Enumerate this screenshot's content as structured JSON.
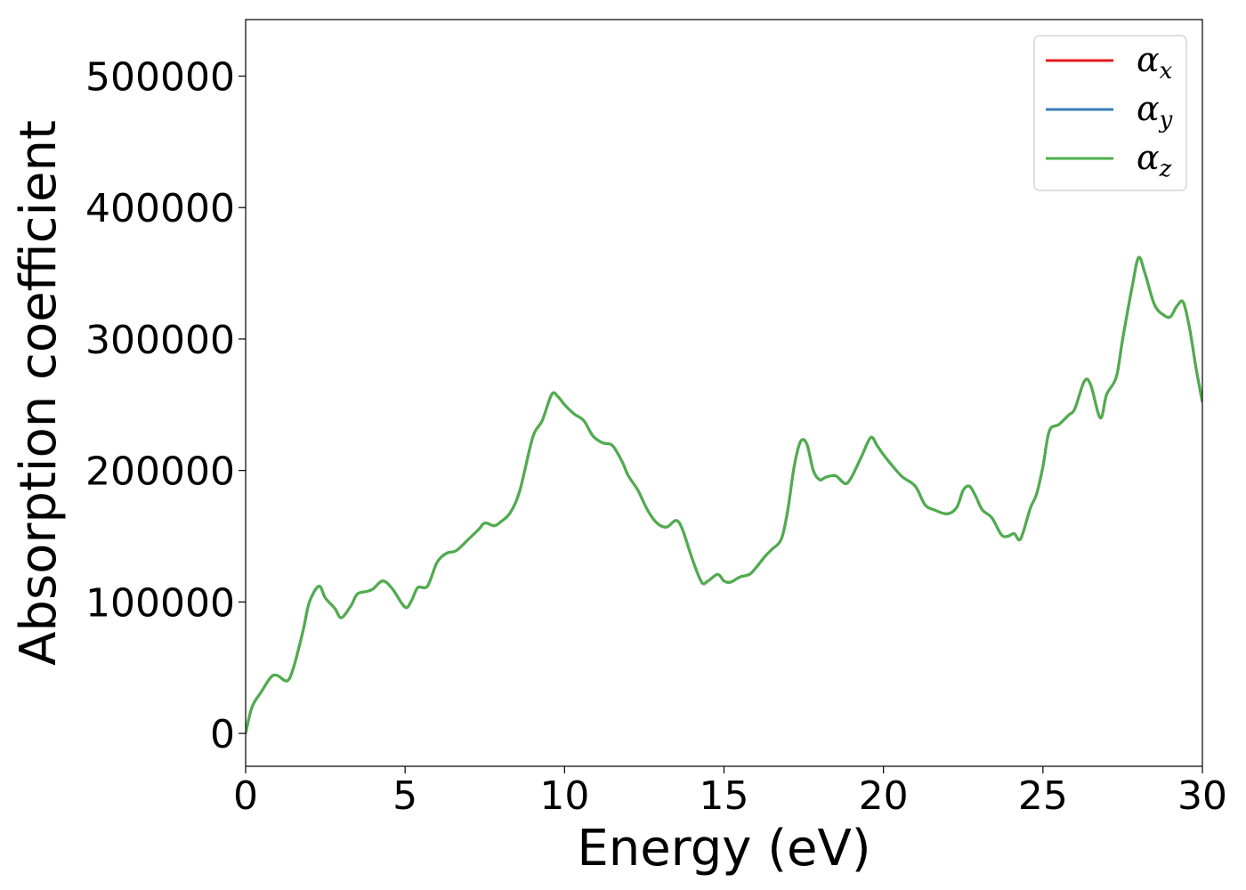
{
  "chart_data": {
    "type": "line",
    "xlabel": "Energy (eV)",
    "ylabel": "Absorption coefficient",
    "xlim": [
      0,
      30
    ],
    "ylim": [
      -25000,
      543000
    ],
    "xticks": [
      "0",
      "5",
      "10",
      "15",
      "20",
      "25",
      "30"
    ],
    "yticks": [
      "0",
      "100000",
      "200000",
      "300000",
      "400000",
      "500000"
    ],
    "grid": false,
    "legend_position": "top-right",
    "x": [
      0.0,
      0.2,
      0.5,
      0.8,
      1.0,
      1.3,
      1.5,
      1.8,
      2.0,
      2.3,
      2.5,
      2.8,
      3.0,
      3.3,
      3.5,
      3.8,
      4.0,
      4.3,
      4.6,
      5.0,
      5.2,
      5.4,
      5.7,
      6.0,
      6.3,
      6.6,
      7.0,
      7.3,
      7.5,
      7.8,
      8.0,
      8.3,
      8.6,
      9.0,
      9.3,
      9.6,
      9.8,
      10.0,
      10.3,
      10.6,
      10.9,
      11.2,
      11.5,
      11.8,
      12.0,
      12.3,
      12.6,
      12.9,
      13.2,
      13.5,
      13.7,
      14.0,
      14.3,
      14.5,
      14.8,
      15.0,
      15.2,
      15.5,
      15.8,
      16.0,
      16.3,
      16.5,
      16.8,
      17.0,
      17.2,
      17.4,
      17.6,
      17.8,
      18.0,
      18.2,
      18.5,
      18.8,
      19.0,
      19.3,
      19.6,
      19.8,
      20.0,
      20.3,
      20.6,
      21.0,
      21.3,
      21.6,
      22.0,
      22.3,
      22.5,
      22.7,
      22.9,
      23.1,
      23.4,
      23.7,
      23.9,
      24.1,
      24.3,
      24.6,
      24.8,
      25.0,
      25.2,
      25.5,
      25.8,
      26.0,
      26.3,
      26.5,
      26.8,
      27.0,
      27.3,
      27.5,
      27.8,
      28.0,
      28.2,
      28.5,
      28.8,
      29.0,
      29.2,
      29.4,
      29.6,
      29.8,
      30.0
    ],
    "series": [
      {
        "name": "α_x",
        "color": "#e41a1c",
        "values": [
          0,
          20000,
          32000,
          43000,
          44000,
          40000,
          50000,
          78000,
          100000,
          112000,
          103000,
          95000,
          88000,
          97000,
          106000,
          108000,
          110000,
          116000,
          110000,
          96000,
          101000,
          111000,
          112000,
          130000,
          137000,
          139000,
          148000,
          155000,
          160000,
          158000,
          161000,
          168000,
          185000,
          225000,
          238000,
          258000,
          256000,
          250000,
          243000,
          238000,
          226000,
          221000,
          219000,
          207000,
          196000,
          185000,
          170000,
          160000,
          157000,
          162000,
          155000,
          133000,
          115000,
          116000,
          121000,
          116000,
          115000,
          119000,
          121000,
          126000,
          135000,
          140000,
          148000,
          170000,
          203000,
          222000,
          220000,
          200000,
          193000,
          195000,
          196000,
          190000,
          195000,
          210000,
          225000,
          219000,
          212000,
          203000,
          195000,
          188000,
          174000,
          170000,
          167000,
          172000,
          185000,
          188000,
          180000,
          170000,
          164000,
          151000,
          150000,
          152000,
          148000,
          171000,
          182000,
          203000,
          230000,
          235000,
          242000,
          247000,
          268000,
          265000,
          240000,
          258000,
          271000,
          300000,
          340000,
          362000,
          350000,
          326000,
          318000,
          317000,
          325000,
          328000,
          308000,
          278000,
          252000
        ]
      },
      {
        "name": "α_y",
        "color": "#377eb8",
        "values": [
          0,
          20000,
          32000,
          43000,
          44000,
          40000,
          50000,
          78000,
          100000,
          112000,
          103000,
          95000,
          88000,
          97000,
          106000,
          108000,
          110000,
          116000,
          110000,
          96000,
          101000,
          111000,
          112000,
          130000,
          137000,
          139000,
          148000,
          155000,
          160000,
          158000,
          161000,
          168000,
          185000,
          225000,
          238000,
          258000,
          256000,
          250000,
          243000,
          238000,
          226000,
          221000,
          219000,
          207000,
          196000,
          185000,
          170000,
          160000,
          157000,
          162000,
          155000,
          133000,
          115000,
          116000,
          121000,
          116000,
          115000,
          119000,
          121000,
          126000,
          135000,
          140000,
          148000,
          170000,
          203000,
          222000,
          220000,
          200000,
          193000,
          195000,
          196000,
          190000,
          195000,
          210000,
          225000,
          219000,
          212000,
          203000,
          195000,
          188000,
          174000,
          170000,
          167000,
          172000,
          185000,
          188000,
          180000,
          170000,
          164000,
          151000,
          150000,
          152000,
          148000,
          171000,
          182000,
          203000,
          230000,
          235000,
          242000,
          247000,
          268000,
          265000,
          240000,
          258000,
          271000,
          300000,
          340000,
          362000,
          350000,
          326000,
          318000,
          317000,
          325000,
          328000,
          308000,
          278000,
          252000
        ]
      },
      {
        "name": "α_z",
        "color": "#4daf4a",
        "values": [
          0,
          20000,
          32000,
          43000,
          44000,
          40000,
          50000,
          78000,
          100000,
          112000,
          103000,
          95000,
          88000,
          97000,
          106000,
          108000,
          110000,
          116000,
          110000,
          96000,
          101000,
          111000,
          112000,
          130000,
          137000,
          139000,
          148000,
          155000,
          160000,
          158000,
          161000,
          168000,
          185000,
          225000,
          238000,
          258000,
          256000,
          250000,
          243000,
          238000,
          226000,
          221000,
          219000,
          207000,
          196000,
          185000,
          170000,
          160000,
          157000,
          162000,
          155000,
          133000,
          115000,
          116000,
          121000,
          116000,
          115000,
          119000,
          121000,
          126000,
          135000,
          140000,
          148000,
          170000,
          203000,
          222000,
          220000,
          200000,
          193000,
          195000,
          196000,
          190000,
          195000,
          210000,
          225000,
          219000,
          212000,
          203000,
          195000,
          188000,
          174000,
          170000,
          167000,
          172000,
          185000,
          188000,
          180000,
          170000,
          164000,
          151000,
          150000,
          152000,
          148000,
          171000,
          182000,
          203000,
          230000,
          235000,
          242000,
          247000,
          268000,
          265000,
          240000,
          258000,
          271000,
          300000,
          340000,
          362000,
          350000,
          326000,
          318000,
          317000,
          325000,
          328000,
          308000,
          278000,
          252000
        ]
      }
    ],
    "legend": [
      {
        "base": "α",
        "sub": "x",
        "color": "#e41a1c"
      },
      {
        "base": "α",
        "sub": "y",
        "color": "#377eb8"
      },
      {
        "base": "α",
        "sub": "z",
        "color": "#4daf4a"
      }
    ]
  }
}
